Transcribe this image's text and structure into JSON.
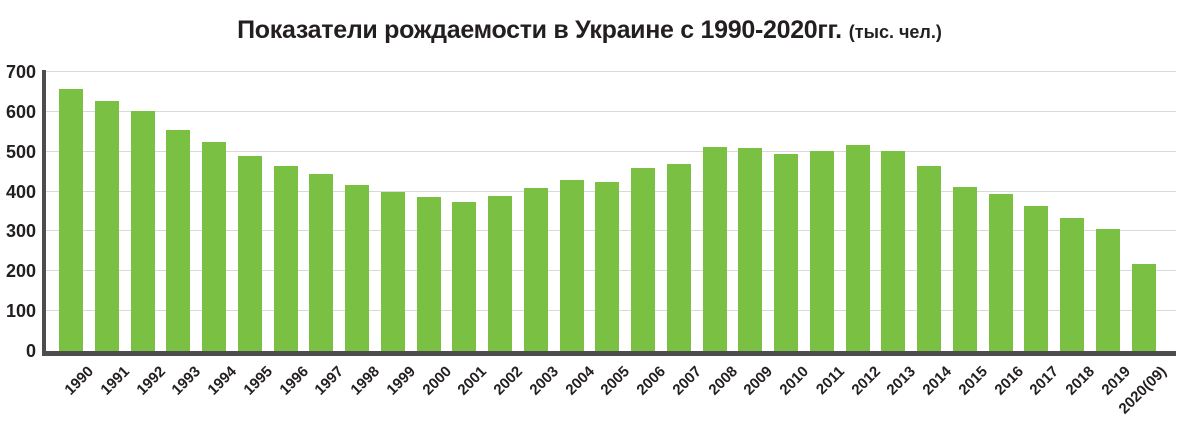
{
  "title": {
    "main": "Показатели рождаемости в Украине с 1990-2020гг.",
    "unit": "(тыс. чел.)"
  },
  "chart_data": {
    "type": "bar",
    "title": "Показатели рождаемости в Украине с 1990-2020гг. (тыс. чел.)",
    "unit_label": "тыс. чел.",
    "categories": [
      "1990",
      "1991",
      "1992",
      "1993",
      "1994",
      "1995",
      "1996",
      "1997",
      "1998",
      "1999",
      "2000",
      "2001",
      "2002",
      "2003",
      "2004",
      "2005",
      "2006",
      "2007",
      "2008",
      "2009",
      "2010",
      "2011",
      "2012",
      "2013",
      "2014",
      "2015",
      "2016",
      "2017",
      "2018",
      "2019",
      "2020(09)"
    ],
    "values": [
      657,
      627,
      601,
      555,
      525,
      489,
      464,
      443,
      416,
      400,
      387,
      374,
      388,
      410,
      428,
      423,
      458,
      469,
      512,
      509,
      495,
      502,
      516,
      502,
      465,
      411,
      395,
      365,
      333,
      305,
      218
    ],
    "xlabel": "",
    "ylabel": "",
    "ylim": [
      0,
      700
    ],
    "yticks": [
      0,
      100,
      200,
      300,
      400,
      500,
      600,
      700
    ],
    "grid": true,
    "legend": false,
    "colors": {
      "bar": "#7AC143",
      "axis": "#4D4D4F",
      "gridline": "#D9D9D9",
      "text": "#231F20"
    }
  }
}
